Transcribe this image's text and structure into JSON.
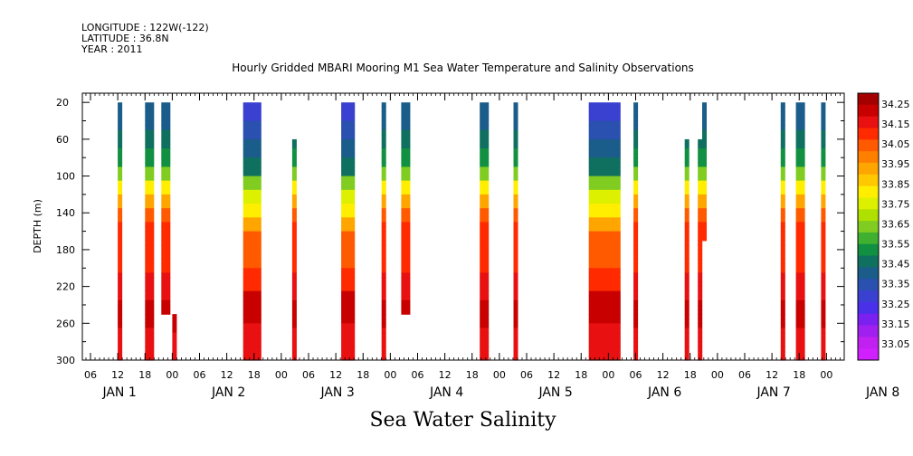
{
  "header": {
    "longitude": "LONGITUDE : 122W(-122)",
    "latitude": "LATITUDE : 36.8N",
    "year": "YEAR : 2011"
  },
  "title": "Hourly Gridded MBARI Mooring M1 Sea Water Temperature and Salinity Observations",
  "variable_title": "Sea Water Salinity",
  "chart_data": {
    "type": "heatmap",
    "ylabel": "DEPTH (m)",
    "xlabel": "",
    "y_ticks": [
      20,
      60,
      100,
      140,
      180,
      220,
      260,
      300
    ],
    "ylim": [
      300,
      10
    ],
    "x_hour_ticks": [
      "06",
      "12",
      "18",
      "00",
      "06",
      "12",
      "18",
      "00",
      "06",
      "12",
      "18",
      "00",
      "06",
      "12",
      "18",
      "00",
      "06",
      "12",
      "18",
      "00",
      "06",
      "12",
      "18",
      "00",
      "06",
      "12",
      "18",
      "00",
      "06",
      "12",
      "18",
      "00",
      "06",
      "12",
      "18",
      "00"
    ],
    "x_day_labels": [
      "JAN 1",
      "JAN 2",
      "JAN 3",
      "JAN 4",
      "JAN 5",
      "JAN 6",
      "JAN 7",
      "JAN 8"
    ],
    "colorbar": {
      "levels": [
        "34.25",
        "34.15",
        "34.05",
        "33.95",
        "33.85",
        "33.75",
        "33.65",
        "33.55",
        "33.45",
        "33.35",
        "33.25",
        "33.15",
        "33.05"
      ],
      "colors": [
        "#a50000",
        "#c80000",
        "#e81010",
        "#ff2a00",
        "#ff5a00",
        "#ff8000",
        "#ffa500",
        "#ffc800",
        "#ffee00",
        "#ddf000",
        "#b0e000",
        "#80cc20",
        "#40b030",
        "#109040",
        "#107060",
        "#1a5c8a",
        "#2a50b0",
        "#3a40d0",
        "#4a30e8",
        "#7a20f0",
        "#a020f0",
        "#c020f0",
        "#d020ff"
      ]
    },
    "data_gaps_note": "",
    "segments": [
      {
        "day": 1.5,
        "hours": 1,
        "top": 20,
        "bottom": 300,
        "profile": "std"
      },
      {
        "day": 1.75,
        "hours": 2,
        "top": 20,
        "bottom": 300,
        "profile": "std"
      },
      {
        "day": 1.9,
        "hours": 2,
        "top": 20,
        "bottom": 250,
        "profile": "std"
      },
      {
        "day": 2.0,
        "hours": 1,
        "top": 250,
        "bottom": 300,
        "profile": "deep"
      },
      {
        "day": 2.65,
        "hours": 4,
        "top": 20,
        "bottom": 300,
        "profile": "fresh"
      },
      {
        "day": 3.1,
        "hours": 1,
        "top": 60,
        "bottom": 300,
        "profile": "std"
      },
      {
        "day": 3.55,
        "hours": 3,
        "top": 20,
        "bottom": 300,
        "profile": "fresh"
      },
      {
        "day": 3.92,
        "hours": 1,
        "top": 20,
        "bottom": 300,
        "profile": "std"
      },
      {
        "day": 4.1,
        "hours": 2,
        "top": 20,
        "bottom": 250,
        "profile": "std"
      },
      {
        "day": 4.82,
        "hours": 2,
        "top": 20,
        "bottom": 300,
        "profile": "std"
      },
      {
        "day": 5.13,
        "hours": 1,
        "top": 20,
        "bottom": 300,
        "profile": "std"
      },
      {
        "day": 5.82,
        "hours": 7,
        "top": 20,
        "bottom": 300,
        "profile": "fresh"
      },
      {
        "day": 6.23,
        "hours": 1,
        "top": 20,
        "bottom": 300,
        "profile": "std"
      },
      {
        "day": 6.7,
        "hours": 1,
        "top": 60,
        "bottom": 300,
        "profile": "std"
      },
      {
        "day": 6.82,
        "hours": 1,
        "top": 60,
        "bottom": 300,
        "profile": "std"
      },
      {
        "day": 6.86,
        "hours": 1,
        "top": 20,
        "bottom": 170,
        "profile": "std"
      },
      {
        "day": 7.58,
        "hours": 1,
        "top": 20,
        "bottom": 300,
        "profile": "std"
      },
      {
        "day": 7.72,
        "hours": 2,
        "top": 20,
        "bottom": 300,
        "profile": "std"
      },
      {
        "day": 7.95,
        "hours": 1,
        "top": 20,
        "bottom": 300,
        "profile": "std"
      }
    ]
  }
}
